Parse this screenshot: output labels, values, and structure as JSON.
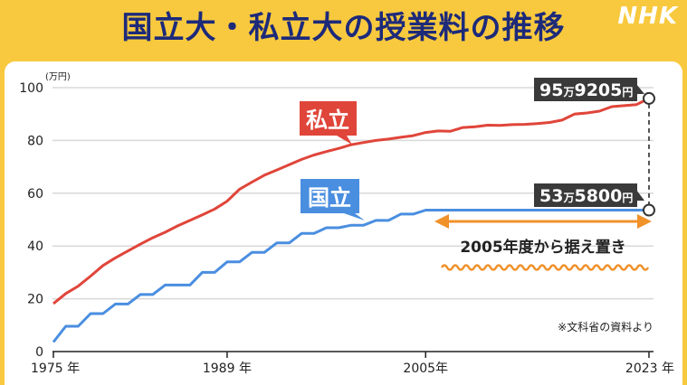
{
  "header": {
    "title": "国立大・私立大の授業料の推移",
    "brand": "NHK"
  },
  "chart_data": {
    "type": "line",
    "unit_label": "(万円)",
    "ylim": [
      0,
      100
    ],
    "yticks": [
      "0",
      "20",
      "40",
      "60",
      "80",
      "100"
    ],
    "xlim": [
      1975,
      2023
    ],
    "xticks": [
      {
        "year": 1975,
        "label": "1975 年"
      },
      {
        "year": 1989,
        "label": "1989 年"
      },
      {
        "year": 2005,
        "label": "2005年"
      },
      {
        "year": 2023,
        "label": "2023 年"
      }
    ],
    "grid": "horizontal",
    "series": [
      {
        "name": "私立",
        "color": "#e0453a",
        "points": [
          [
            1975,
            18.2
          ],
          [
            1976,
            22
          ],
          [
            1977,
            24.8
          ],
          [
            1978,
            28.6
          ],
          [
            1979,
            32.6
          ],
          [
            1980,
            35.5
          ],
          [
            1981,
            38.1
          ],
          [
            1982,
            40.7
          ],
          [
            1983,
            43.1
          ],
          [
            1984,
            45.2
          ],
          [
            1985,
            47.6
          ],
          [
            1986,
            49.7
          ],
          [
            1987,
            51.8
          ],
          [
            1988,
            54.0
          ],
          [
            1989,
            57.0
          ],
          [
            1990,
            61.5
          ],
          [
            1991,
            64.2
          ],
          [
            1992,
            66.8
          ],
          [
            1993,
            68.8
          ],
          [
            1994,
            70.8
          ],
          [
            1995,
            72.8
          ],
          [
            1996,
            74.5
          ],
          [
            1997,
            75.8
          ],
          [
            1998,
            77.0
          ],
          [
            1999,
            78.4
          ],
          [
            2000,
            79.2
          ],
          [
            2001,
            80.0
          ],
          [
            2002,
            80.5
          ],
          [
            2003,
            81.2
          ],
          [
            2004,
            81.8
          ],
          [
            2005,
            83.0
          ],
          [
            2006,
            83.6
          ],
          [
            2007,
            83.5
          ],
          [
            2008,
            84.9
          ],
          [
            2009,
            85.2
          ],
          [
            2010,
            85.8
          ],
          [
            2011,
            85.7
          ],
          [
            2012,
            86.0
          ],
          [
            2013,
            86.1
          ],
          [
            2014,
            86.4
          ],
          [
            2015,
            86.8
          ],
          [
            2016,
            87.7
          ],
          [
            2017,
            90.0
          ],
          [
            2018,
            90.4
          ],
          [
            2019,
            91.1
          ],
          [
            2020,
            92.8
          ],
          [
            2021,
            93.2
          ],
          [
            2022,
            93.6
          ],
          [
            2023,
            95.9205
          ]
        ]
      },
      {
        "name": "国立",
        "color": "#4a8ee0",
        "points": [
          [
            1975,
            3.6
          ],
          [
            1976,
            9.6
          ],
          [
            1977,
            9.6
          ],
          [
            1978,
            14.4
          ],
          [
            1979,
            14.4
          ],
          [
            1980,
            18.0
          ],
          [
            1981,
            18.0
          ],
          [
            1982,
            21.6
          ],
          [
            1983,
            21.6
          ],
          [
            1984,
            25.2
          ],
          [
            1985,
            25.2
          ],
          [
            1986,
            25.2
          ],
          [
            1987,
            30.0
          ],
          [
            1988,
            30.0
          ],
          [
            1989,
            33.96
          ],
          [
            1990,
            33.96
          ],
          [
            1991,
            37.56
          ],
          [
            1992,
            37.56
          ],
          [
            1993,
            41.16
          ],
          [
            1994,
            41.16
          ],
          [
            1995,
            44.76
          ],
          [
            1996,
            44.76
          ],
          [
            1997,
            46.92
          ],
          [
            1998,
            46.92
          ],
          [
            1999,
            47.88
          ],
          [
            2000,
            47.88
          ],
          [
            2001,
            49.68
          ],
          [
            2002,
            49.68
          ],
          [
            2003,
            52.08
          ],
          [
            2004,
            52.08
          ],
          [
            2005,
            53.58
          ],
          [
            2006,
            53.58
          ],
          [
            2007,
            53.58
          ],
          [
            2008,
            53.58
          ],
          [
            2009,
            53.58
          ],
          [
            2010,
            53.58
          ],
          [
            2011,
            53.58
          ],
          [
            2012,
            53.58
          ],
          [
            2013,
            53.58
          ],
          [
            2014,
            53.58
          ],
          [
            2015,
            53.58
          ],
          [
            2016,
            53.58
          ],
          [
            2017,
            53.58
          ],
          [
            2018,
            53.58
          ],
          [
            2019,
            53.58
          ],
          [
            2020,
            53.58
          ],
          [
            2021,
            53.58
          ],
          [
            2022,
            53.58
          ],
          [
            2023,
            53.58
          ]
        ]
      }
    ],
    "callouts": {
      "private_label": "私立",
      "national_label": "国立",
      "private_value": {
        "man_num": "95",
        "man_unit": "万",
        "rest_num": "9205",
        "yen_unit": "円"
      },
      "national_value": {
        "man_num": "53",
        "man_unit": "万",
        "rest_num": "5800",
        "yen_unit": "円"
      },
      "flat_label": "2005年度から据え置き",
      "source": "※文科省の資料より"
    }
  }
}
